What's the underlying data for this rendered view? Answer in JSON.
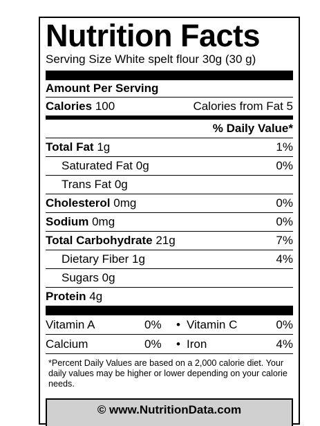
{
  "label": {
    "title": "Nutrition Facts",
    "serving_size": "Serving Size White spelt flour 30g (30 g)",
    "amount_per_serving": "Amount Per Serving",
    "calories_label": "Calories",
    "calories_value": "100",
    "calories_from_fat": "Calories from Fat 5",
    "daily_value_header": "% Daily Value*",
    "nutrients": [
      {
        "name": "Total Fat",
        "amount": "1g",
        "dv": "1%"
      },
      {
        "name": "Saturated Fat",
        "amount": "0g",
        "dv": "0%"
      },
      {
        "name": "Trans Fat",
        "amount": "0g",
        "dv": ""
      },
      {
        "name": "Cholesterol",
        "amount": "0mg",
        "dv": "0%"
      },
      {
        "name": "Sodium",
        "amount": "0mg",
        "dv": "0%"
      },
      {
        "name": "Total Carbohydrate",
        "amount": "21g",
        "dv": "7%"
      },
      {
        "name": "Dietary Fiber",
        "amount": "1g",
        "dv": "4%"
      },
      {
        "name": "Sugars",
        "amount": "0g",
        "dv": ""
      },
      {
        "name": "Protein",
        "amount": "4g",
        "dv": ""
      }
    ],
    "vitamins": [
      {
        "name1": "Vitamin A",
        "pct1": "0%",
        "sep": "•",
        "name2": "Vitamin C",
        "pct2": "0%"
      },
      {
        "name1": "Calcium",
        "pct1": "0%",
        "sep": "•",
        "name2": "Iron",
        "pct2": "4%"
      }
    ],
    "footnote": "*Percent Daily Values are based on a 2,000 calorie diet. Your daily values may be higher or lower depending on your calorie needs.",
    "copyright": "© www.NutritionData.com"
  }
}
